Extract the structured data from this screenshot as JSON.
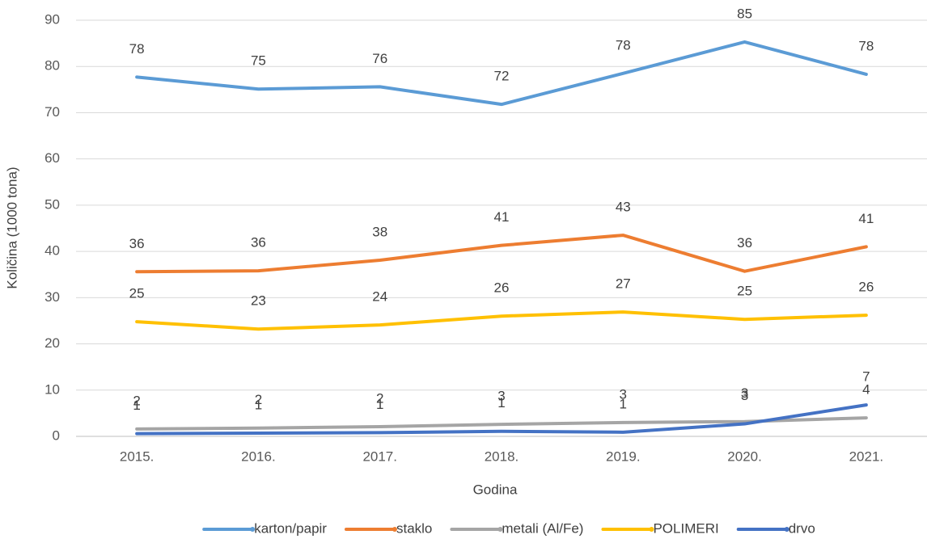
{
  "chart_data": {
    "type": "line",
    "x_label": "Godina",
    "y_label": "Količina (1000 tona)",
    "categories": [
      "2015.",
      "2016.",
      "2017.",
      "2018.",
      "2019.",
      "2020.",
      "2021."
    ],
    "ylim": [
      0,
      90
    ],
    "yticks": [
      0,
      10,
      20,
      30,
      40,
      50,
      60,
      70,
      80,
      90
    ],
    "grid": true,
    "legend": "bottom",
    "series": [
      {
        "name": "karton/papir",
        "color": "#5b9bd5",
        "values": [
          77.7,
          75.1,
          75.6,
          71.8,
          78.5,
          85.3,
          78.3
        ],
        "value_labels": [
          "78",
          "75",
          "76",
          "72",
          "78",
          "85",
          "78"
        ]
      },
      {
        "name": "staklo",
        "color": "#ed7d31",
        "values": [
          35.6,
          35.8,
          38.1,
          41.3,
          43.5,
          35.7,
          41.0
        ],
        "value_labels": [
          "36",
          "36",
          "38",
          "41",
          "43",
          "36",
          "41"
        ]
      },
      {
        "name": "metali (Al/Fe)",
        "color": "#a5a5a5",
        "values": [
          1.6,
          1.8,
          2.1,
          2.6,
          3.0,
          3.2,
          4.0
        ],
        "value_labels": [
          "2",
          "2",
          "2",
          "3",
          "3",
          "3",
          "4"
        ]
      },
      {
        "name": "POLIMERI",
        "color": "#ffc000",
        "values": [
          24.8,
          23.2,
          24.1,
          26.0,
          26.9,
          25.3,
          26.2
        ],
        "value_labels": [
          "25",
          "23",
          "24",
          "26",
          "27",
          "25",
          "26"
        ]
      },
      {
        "name": "drvo",
        "color": "#4472c4",
        "values": [
          0.6,
          0.7,
          0.8,
          1.1,
          0.9,
          2.7,
          6.8
        ],
        "value_labels": [
          "1",
          "1",
          "1",
          "1",
          "1",
          "3",
          "7"
        ]
      }
    ]
  }
}
